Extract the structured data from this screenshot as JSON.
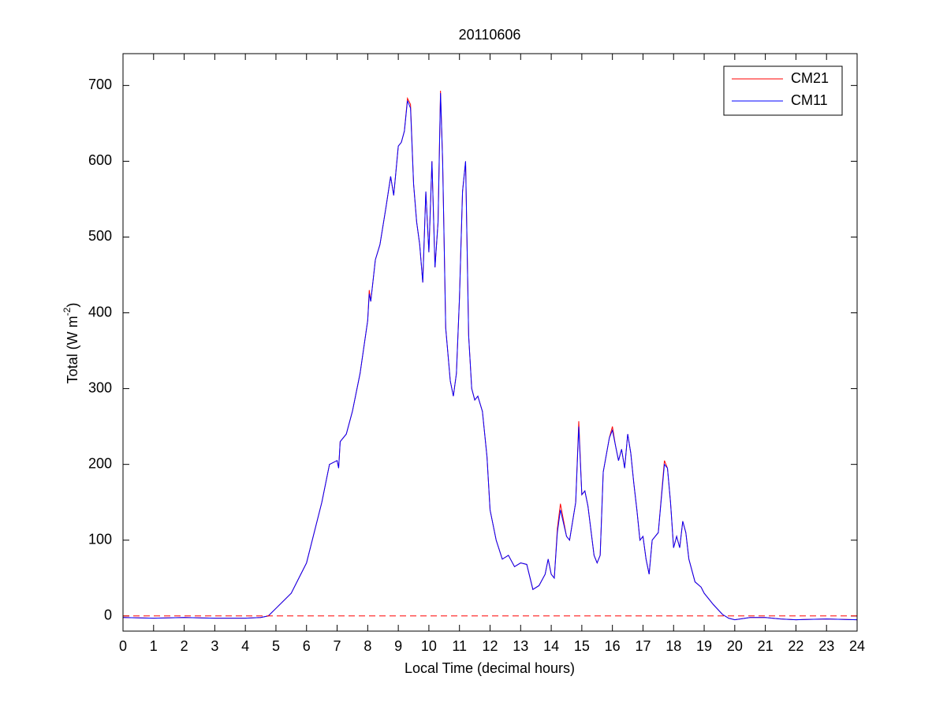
{
  "chart_data": {
    "type": "line",
    "title": "20110606",
    "xlabel": "Local Time (decimal hours)",
    "ylabel": [
      "Total (W m",
      "-2",
      ")"
    ],
    "xlim": [
      0,
      24
    ],
    "ylim": [
      -20,
      742
    ],
    "xticks": [
      0,
      1,
      2,
      3,
      4,
      5,
      6,
      7,
      8,
      9,
      10,
      11,
      12,
      13,
      14,
      15,
      16,
      17,
      18,
      19,
      20,
      21,
      22,
      23,
      24
    ],
    "yticks": [
      0,
      100,
      200,
      300,
      400,
      500,
      600,
      700
    ],
    "hline": 0,
    "hline_color": "#ff0000",
    "legend": "upper right",
    "x": [
      0,
      1,
      2,
      3,
      4,
      4.5,
      4.75,
      5,
      5.5,
      6,
      6.5,
      6.75,
      7,
      7.05,
      7.1,
      7.3,
      7.5,
      7.75,
      8,
      8.05,
      8.1,
      8.25,
      8.4,
      8.6,
      8.75,
      8.85,
      9,
      9.1,
      9.2,
      9.3,
      9.4,
      9.5,
      9.6,
      9.7,
      9.8,
      9.9,
      10,
      10.1,
      10.2,
      10.3,
      10.38,
      10.45,
      10.55,
      10.7,
      10.8,
      10.9,
      11,
      11.1,
      11.2,
      11.3,
      11.4,
      11.5,
      11.6,
      11.75,
      11.9,
      12,
      12.2,
      12.4,
      12.6,
      12.8,
      13,
      13.2,
      13.4,
      13.6,
      13.8,
      13.9,
      14,
      14.1,
      14.2,
      14.3,
      14.5,
      14.6,
      14.8,
      14.9,
      15,
      15.1,
      15.2,
      15.4,
      15.5,
      15.6,
      15.7,
      15.9,
      16,
      16.1,
      16.2,
      16.3,
      16.4,
      16.5,
      16.6,
      16.7,
      16.8,
      16.9,
      17,
      17.1,
      17.2,
      17.3,
      17.5,
      17.7,
      17.8,
      17.9,
      18,
      18.1,
      18.2,
      18.3,
      18.4,
      18.5,
      18.7,
      18.9,
      19,
      19.3,
      19.6,
      19.8,
      20,
      20.5,
      21,
      21.5,
      22,
      23,
      24
    ],
    "series": [
      {
        "name": "CM21",
        "color": "#ff0000",
        "values": [
          -2,
          -3,
          -2,
          -3,
          -3,
          -2,
          0,
          10,
          30,
          70,
          150,
          200,
          205,
          195,
          230,
          240,
          270,
          320,
          390,
          430,
          415,
          470,
          490,
          540,
          580,
          555,
          620,
          625,
          640,
          683,
          675,
          570,
          520,
          490,
          440,
          560,
          480,
          600,
          460,
          520,
          693,
          600,
          380,
          310,
          290,
          320,
          420,
          560,
          600,
          370,
          300,
          285,
          290,
          270,
          210,
          140,
          100,
          75,
          80,
          65,
          70,
          68,
          35,
          40,
          55,
          75,
          55,
          50,
          115,
          148,
          105,
          100,
          150,
          257,
          160,
          165,
          145,
          80,
          70,
          80,
          190,
          235,
          250,
          225,
          205,
          220,
          195,
          240,
          215,
          175,
          140,
          100,
          105,
          75,
          55,
          100,
          110,
          205,
          195,
          150,
          90,
          105,
          90,
          125,
          110,
          75,
          45,
          38,
          30,
          15,
          2,
          -3,
          -5,
          -2,
          -2,
          -4,
          -5,
          -4,
          -5
        ]
      },
      {
        "name": "CM11",
        "color": "#0000ff",
        "values": [
          -2,
          -3,
          -2,
          -3,
          -3,
          -2,
          0,
          10,
          30,
          70,
          150,
          200,
          205,
          195,
          230,
          240,
          270,
          320,
          390,
          425,
          415,
          470,
          490,
          540,
          580,
          555,
          620,
          625,
          640,
          680,
          670,
          570,
          520,
          490,
          440,
          560,
          480,
          600,
          460,
          520,
          690,
          600,
          380,
          310,
          290,
          320,
          420,
          560,
          600,
          370,
          300,
          285,
          290,
          270,
          210,
          140,
          100,
          75,
          80,
          65,
          70,
          68,
          35,
          40,
          55,
          75,
          55,
          50,
          110,
          140,
          105,
          100,
          150,
          250,
          160,
          165,
          145,
          80,
          70,
          80,
          190,
          235,
          245,
          225,
          205,
          220,
          195,
          240,
          215,
          175,
          140,
          100,
          105,
          75,
          55,
          100,
          110,
          200,
          195,
          150,
          90,
          105,
          90,
          125,
          110,
          75,
          45,
          38,
          30,
          15,
          2,
          -3,
          -5,
          -2,
          -2,
          -4,
          -5,
          -4,
          -5
        ]
      }
    ]
  }
}
